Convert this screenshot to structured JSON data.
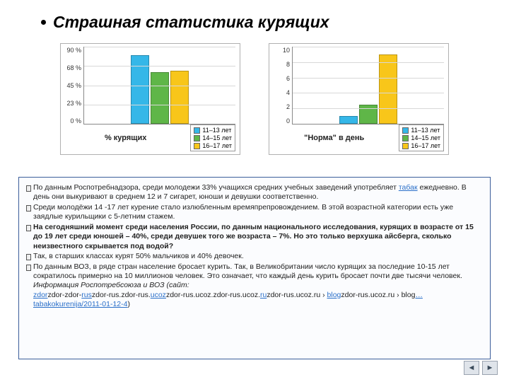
{
  "title": "Страшная статистика курящих",
  "colors": {
    "series": [
      "#35b7e8",
      "#5fb648",
      "#f8c61a"
    ],
    "grid": "#d8d8d8",
    "axis": "#888888",
    "box_border": "#b0b0b0",
    "info_border": "#3b5e9a",
    "info_bg": "#fbfcfe"
  },
  "legend_labels": [
    "11–13 лет",
    "14–15 лет",
    "16–17 лет"
  ],
  "chart1": {
    "type": "bar",
    "y_ticks": [
      "90 %",
      "68 %",
      "45 %",
      "23 %",
      "0 %"
    ],
    "ylim": [
      0,
      90
    ],
    "x_label": "% курящих",
    "values": [
      80,
      60,
      62
    ]
  },
  "chart2": {
    "type": "bar",
    "y_ticks": [
      "10",
      "8",
      "6",
      "4",
      "2",
      "0"
    ],
    "ylim": [
      0,
      10
    ],
    "x_label": "\"Норма\" в день",
    "values": [
      1,
      2.5,
      9
    ]
  },
  "info": {
    "items": [
      {
        "html": "По данным Роспотребнадзора, среди молодежи 33% учащихся средних учебных заведений употребляет <a href='#'>табак</a> ежедневно. В день они выкуривают в среднем 12 и 7 сигарет, юноши и девушки соответственно."
      },
      {
        "html": "Среди молодёжи 14 -17 лет курение стало излюбленным времяпрепровождением. В этой возрастной категории есть уже заядлые курильщики с 5-летним стажем."
      },
      {
        "html": "<span class='bold'>На сегодняшний момент среди населения России, по данным национального исследования, курящих в возрасте от 15 до 19 лет среди юношей – 40%, среди девушек того же возраста – 7%.  Но это только верхушка айсберга, сколько неизвестного скрывается под водой?</span>"
      },
      {
        "html": "Так, в старших классах курят 50% мальчиков и 40% девочек."
      },
      {
        "html": "По данным ВОЗ, в ряде стран население бросает курить. Так, в Великобритании число курящих за последние 10-15 лет сократилось примерно на 10 миллионов человек. Это означает, что каждый день курить бросает почти две тысячи человек.<br><span class='ital'>Информация Роспотребсоюза и ВОЗ (сайт:</span><br><a href='#'>zdor</a>zdor-zdor-<a href='#'>rus</a>zdor-rus.zdor-rus.<a href='#'>ucoz</a>zdor-rus.ucoz.zdor-rus.ucoz.<a href='#'>ru</a>zdor-rus.ucoz.ru › <a href='#'>blog</a>zdor-rus.ucoz.ru › blog<a href='#'>…tabakokurenija/2011-01-12-4</a>)"
      }
    ]
  },
  "nav": {
    "prev": "◄",
    "next": "►"
  }
}
